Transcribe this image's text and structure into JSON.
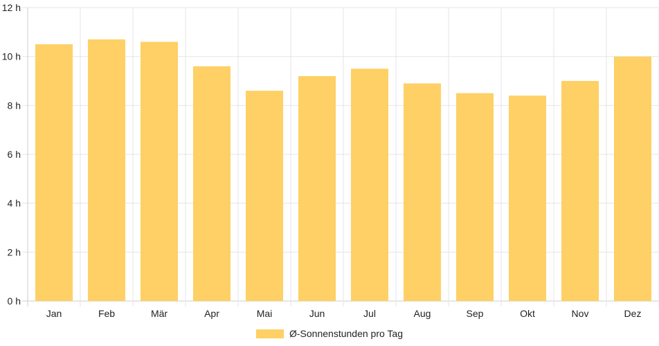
{
  "chart_data": {
    "type": "bar",
    "categories": [
      "Jan",
      "Feb",
      "Mär",
      "Apr",
      "Mai",
      "Jun",
      "Jul",
      "Aug",
      "Sep",
      "Okt",
      "Nov",
      "Dez"
    ],
    "series": [
      {
        "name": "Ø-Sonnenstunden pro Tag",
        "values": [
          10.5,
          10.7,
          10.6,
          9.6,
          8.6,
          9.2,
          9.5,
          8.9,
          8.5,
          8.4,
          9.0,
          10.0
        ]
      }
    ],
    "y_ticks": [
      "0 h",
      "2 h",
      "4 h",
      "6 h",
      "8 h",
      "10 h",
      "12 h"
    ],
    "ylim": [
      0,
      12
    ],
    "y_unit": "h",
    "grid": true,
    "legend_position": "bottom",
    "colors": {
      "bar": "#fed065",
      "grid": "#e5e5e5",
      "axis": "#cccccc"
    }
  }
}
